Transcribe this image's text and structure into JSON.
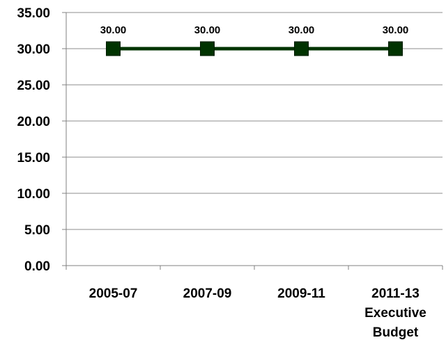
{
  "chart_data": {
    "type": "line",
    "categories": [
      [
        "2005-07"
      ],
      [
        "2007-09"
      ],
      [
        "2009-11"
      ],
      [
        "2011-13",
        "Executive",
        "Budget"
      ]
    ],
    "series": [
      {
        "values": [
          30.0,
          30.0,
          30.0,
          30.0
        ],
        "data_labels": [
          "30.00",
          "30.00",
          "30.00",
          "30.00"
        ],
        "color": "#003300",
        "marker": "square"
      }
    ],
    "ylim": [
      0,
      35
    ],
    "y_ticks": [
      0,
      5,
      10,
      15,
      20,
      25,
      30,
      35
    ],
    "y_tick_labels": [
      "0.00",
      "5.00",
      "10.00",
      "15.00",
      "20.00",
      "25.00",
      "30.00",
      "35.00"
    ],
    "grid": true,
    "legend": "none",
    "title": "",
    "xlabel": "",
    "ylabel": ""
  }
}
